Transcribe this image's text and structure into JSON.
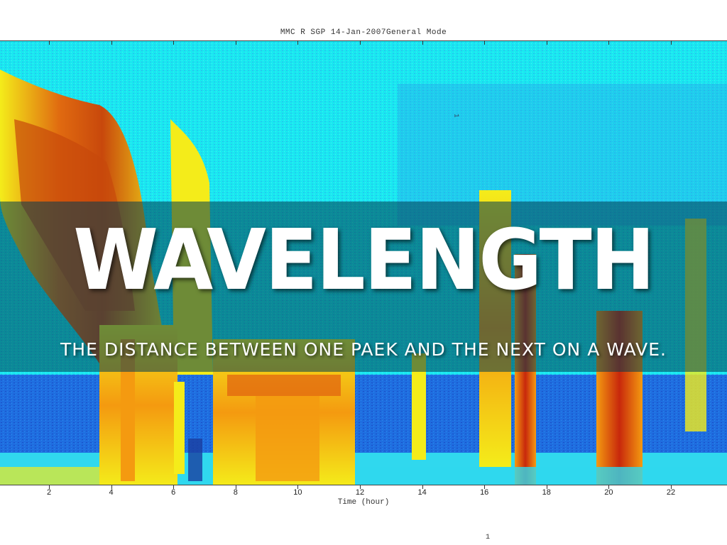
{
  "slide": {
    "headline": "WAVELENGTH",
    "definition": "THE DISTANCE BETWEEN ONE PAEK AND THE NEXT ON A WAVE."
  },
  "background_plot": {
    "title": "MMC R SGP 14-Jan-2007General Mode",
    "xlabel": "Time (hour)",
    "x_tick_labels": [
      "2",
      "4",
      "6",
      "8",
      "10",
      "12",
      "14",
      "16",
      "18",
      "20",
      "22"
    ],
    "inner_mark": "1",
    "page_number": "1",
    "colors": {
      "cyan": "#19e8f0",
      "blue": "#1a5fd6",
      "yellow": "#f4ec1a",
      "orange": "#f49a10",
      "red": "#c8280c",
      "band_overlay": "#003c50"
    }
  }
}
